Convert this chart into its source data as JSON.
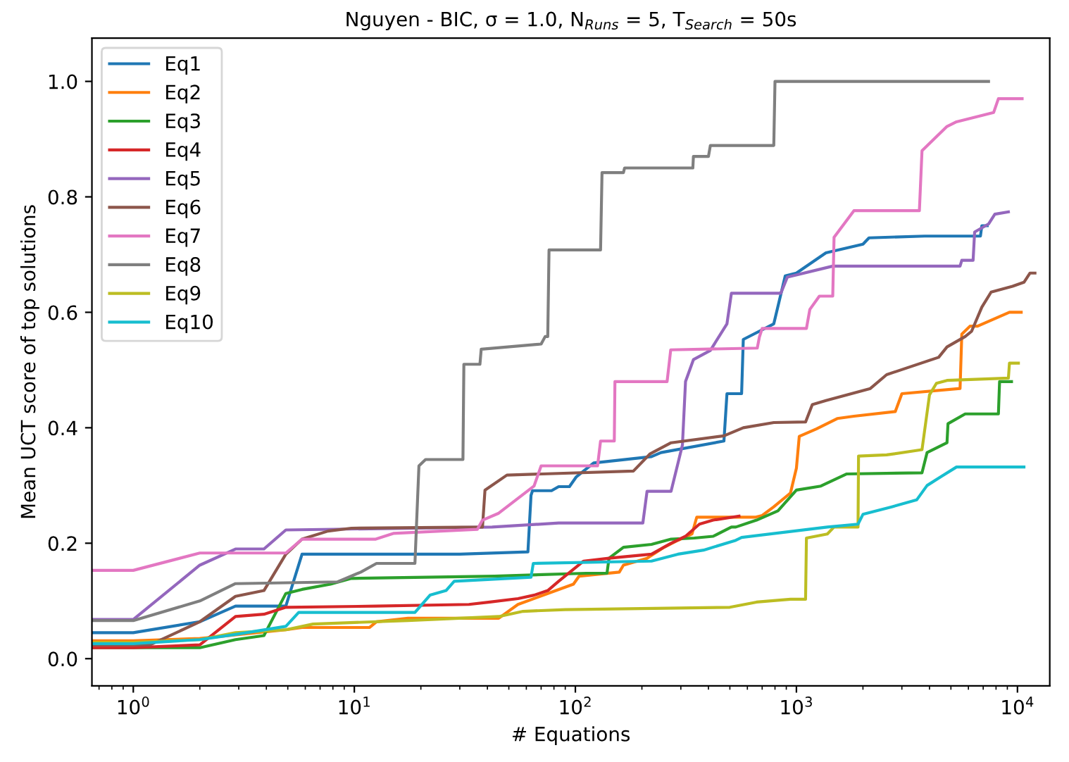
{
  "chart_data": {
    "type": "line",
    "title": "Nguyen - BIC, σ = 1.0, N$_{Runs}$ = 5, T$_{Search}$ = 50s",
    "xlabel": "# Equations",
    "ylabel": "Mean UCT score of top solutions",
    "log": "x",
    "grid": false,
    "legend": "top left",
    "marker": "none",
    "line_style": "solid",
    "xlim": [
      0.65,
      14000
    ],
    "xticks": [
      {
        "value": 1,
        "label": "10$^{0}$"
      },
      {
        "value": 10,
        "label": "10$^{1}$"
      },
      {
        "value": 100,
        "label": "10$^{2}$"
      },
      {
        "value": 1000,
        "label": "10$^{3}$"
      },
      {
        "value": 10000,
        "label": "10$^{4}$"
      }
    ],
    "ylim": [
      -0.047,
      1.075
    ],
    "yticks": [
      {
        "value": 0,
        "label": "0.0"
      },
      {
        "value": 0.2,
        "label": "0.2"
      },
      {
        "value": 0.4,
        "label": "0.4"
      },
      {
        "value": 0.6,
        "label": "0.6"
      },
      {
        "value": 0.8,
        "label": "0.8"
      },
      {
        "value": 1,
        "label": "1.0"
      }
    ],
    "series": [
      {
        "name": "Eq1",
        "color": "#1f77b4",
        "x": [
          0.66,
          1,
          2,
          2.9,
          4.9,
          5.8,
          30,
          61,
          63,
          64,
          78,
          84,
          94,
          101,
          121,
          221,
          244,
          470,
          485,
          565,
          575,
          790,
          890,
          1000,
          1360,
          2000,
          2130,
          3800,
          6800,
          6900,
          7300
        ],
        "values": [
          0.045,
          0.045,
          0.064,
          0.091,
          0.091,
          0.181,
          0.181,
          0.185,
          0.283,
          0.291,
          0.291,
          0.298,
          0.298,
          0.315,
          0.339,
          0.35,
          0.357,
          0.377,
          0.459,
          0.459,
          0.553,
          0.58,
          0.663,
          0.668,
          0.703,
          0.718,
          0.729,
          0.732,
          0.732,
          0.75,
          0.75
        ]
      },
      {
        "name": "Eq2",
        "color": "#ff7f0e",
        "x": [
          0.66,
          1,
          2,
          4.9,
          5.8,
          11.7,
          12.6,
          17.5,
          45,
          55,
          98,
          104,
          158,
          165,
          211,
          252,
          291,
          337,
          354,
          650,
          700,
          790,
          940,
          1000,
          1030,
          1230,
          1530,
          1820,
          2800,
          3000,
          5500,
          5600,
          6100,
          6600,
          9200,
          10400
        ],
        "values": [
          0.031,
          0.031,
          0.035,
          0.05,
          0.054,
          0.054,
          0.064,
          0.07,
          0.07,
          0.094,
          0.129,
          0.143,
          0.15,
          0.162,
          0.174,
          0.193,
          0.205,
          0.216,
          0.245,
          0.245,
          0.248,
          0.263,
          0.287,
          0.33,
          0.385,
          0.398,
          0.416,
          0.42,
          0.428,
          0.459,
          0.468,
          0.562,
          0.576,
          0.576,
          0.6,
          0.6
        ]
      },
      {
        "name": "Eq3",
        "color": "#2ca02c",
        "x": [
          0.66,
          1,
          2,
          2.9,
          3.9,
          4.9,
          5.8,
          7.8,
          9.7,
          43,
          112,
          139,
          142,
          165,
          221,
          271,
          345,
          420,
          508,
          532,
          660,
          825,
          1000,
          1290,
          1690,
          3700,
          3900,
          4800,
          4850,
          5800,
          8200,
          8300,
          9400
        ],
        "values": [
          0.019,
          0.019,
          0.019,
          0.033,
          0.04,
          0.113,
          0.12,
          0.129,
          0.139,
          0.143,
          0.148,
          0.148,
          0.174,
          0.193,
          0.198,
          0.207,
          0.209,
          0.212,
          0.228,
          0.228,
          0.24,
          0.256,
          0.292,
          0.299,
          0.32,
          0.322,
          0.357,
          0.374,
          0.407,
          0.424,
          0.424,
          0.48,
          0.48
        ]
      },
      {
        "name": "Eq4",
        "color": "#d62728",
        "x": [
          0.66,
          1,
          2,
          2.9,
          3.9,
          4.9,
          12.5,
          33,
          41,
          55,
          65,
          75,
          84,
          109,
          142,
          221,
          271,
          315,
          364,
          420,
          550
        ],
        "values": [
          0.019,
          0.019,
          0.024,
          0.073,
          0.077,
          0.089,
          0.091,
          0.094,
          0.098,
          0.104,
          0.11,
          0.118,
          0.134,
          0.169,
          0.174,
          0.181,
          0.2,
          0.212,
          0.233,
          0.24,
          0.247
        ]
      },
      {
        "name": "Eq5",
        "color": "#9467bd",
        "x": [
          0.66,
          1,
          2,
          2.9,
          3.9,
          4.9,
          42,
          84,
          202,
          211,
          271,
          305,
          315,
          342,
          408,
          485,
          508,
          850,
          910,
          1460,
          5500,
          5600,
          6300,
          6400,
          7400,
          7900,
          9100
        ],
        "values": [
          0.068,
          0.068,
          0.162,
          0.19,
          0.19,
          0.223,
          0.228,
          0.235,
          0.235,
          0.29,
          0.29,
          0.37,
          0.48,
          0.518,
          0.534,
          0.58,
          0.633,
          0.633,
          0.661,
          0.68,
          0.68,
          0.69,
          0.69,
          0.739,
          0.753,
          0.77,
          0.774
        ]
      },
      {
        "name": "Eq6",
        "color": "#8c564b",
        "x": [
          0.66,
          1,
          1.19,
          2,
          2.9,
          3.9,
          4.9,
          5.8,
          7.6,
          9.7,
          38,
          39,
          49,
          183,
          218,
          271,
          470,
          575,
          790,
          1100,
          1180,
          1360,
          2160,
          2560,
          4400,
          4800,
          5800,
          6200,
          6900,
          7600,
          9500,
          10700,
          11400,
          12000
        ],
        "values": [
          0.024,
          0.024,
          0.024,
          0.064,
          0.108,
          0.118,
          0.181,
          0.207,
          0.221,
          0.226,
          0.228,
          0.292,
          0.318,
          0.325,
          0.355,
          0.374,
          0.386,
          0.4,
          0.409,
          0.41,
          0.44,
          0.447,
          0.468,
          0.492,
          0.522,
          0.54,
          0.558,
          0.567,
          0.609,
          0.635,
          0.645,
          0.652,
          0.668,
          0.668
        ]
      },
      {
        "name": "Eq7",
        "color": "#e377c2",
        "x": [
          0.66,
          1,
          2,
          4.9,
          5.8,
          12.5,
          15,
          36,
          38,
          45,
          65,
          70,
          126,
          130,
          150,
          151,
          260,
          270,
          665,
          680,
          700,
          1110,
          1150,
          1270,
          1460,
          1480,
          1820,
          3600,
          3700,
          4800,
          5300,
          7800,
          8200,
          10500
        ],
        "values": [
          0.153,
          0.153,
          0.183,
          0.183,
          0.207,
          0.207,
          0.217,
          0.224,
          0.24,
          0.252,
          0.299,
          0.334,
          0.334,
          0.377,
          0.377,
          0.48,
          0.48,
          0.535,
          0.538,
          0.557,
          0.572,
          0.572,
          0.605,
          0.628,
          0.628,
          0.73,
          0.776,
          0.776,
          0.88,
          0.922,
          0.93,
          0.946,
          0.97,
          0.97
        ]
      },
      {
        "name": "Eq8",
        "color": "#7f7f7f",
        "x": [
          0.66,
          1,
          2,
          2.9,
          8.4,
          10.7,
          12.6,
          18.8,
          19.6,
          21,
          31,
          31.3,
          37,
          37.5,
          70,
          73,
          75,
          76,
          130,
          132,
          165,
          167,
          340,
          342,
          400,
          408,
          790,
          800,
          7400
        ],
        "values": [
          0.066,
          0.066,
          0.1,
          0.13,
          0.133,
          0.15,
          0.165,
          0.165,
          0.334,
          0.345,
          0.345,
          0.51,
          0.51,
          0.536,
          0.545,
          0.558,
          0.558,
          0.708,
          0.708,
          0.842,
          0.842,
          0.85,
          0.85,
          0.87,
          0.87,
          0.889,
          0.889,
          1.0,
          1.0
        ]
      },
      {
        "name": "Eq9",
        "color": "#bcbd22",
        "x": [
          0.66,
          1,
          2,
          2.9,
          4.9,
          6.5,
          17.5,
          45,
          58,
          90,
          500,
          660,
          940,
          1100,
          1110,
          1380,
          1480,
          1900,
          1910,
          2560,
          3700,
          4000,
          4300,
          4800,
          9100,
          9200,
          10100
        ],
        "values": [
          0.028,
          0.028,
          0.033,
          0.045,
          0.05,
          0.06,
          0.066,
          0.073,
          0.082,
          0.085,
          0.089,
          0.098,
          0.103,
          0.103,
          0.209,
          0.216,
          0.228,
          0.228,
          0.351,
          0.353,
          0.362,
          0.457,
          0.477,
          0.482,
          0.486,
          0.512,
          0.512
        ]
      },
      {
        "name": "Eq10",
        "color": "#17becf",
        "x": [
          0.66,
          1,
          2,
          2.9,
          4.9,
          5.6,
          18.8,
          22,
          26,
          28.3,
          63,
          64.5,
          221,
          291,
          380,
          532,
          565,
          1380,
          1900,
          2000,
          2700,
          3500,
          3900,
          4500,
          5300,
          10700
        ],
        "values": [
          0.026,
          0.026,
          0.033,
          0.042,
          0.056,
          0.08,
          0.08,
          0.11,
          0.118,
          0.134,
          0.141,
          0.165,
          0.169,
          0.181,
          0.188,
          0.205,
          0.21,
          0.228,
          0.233,
          0.25,
          0.263,
          0.275,
          0.3,
          0.315,
          0.332,
          0.332
        ]
      }
    ]
  }
}
